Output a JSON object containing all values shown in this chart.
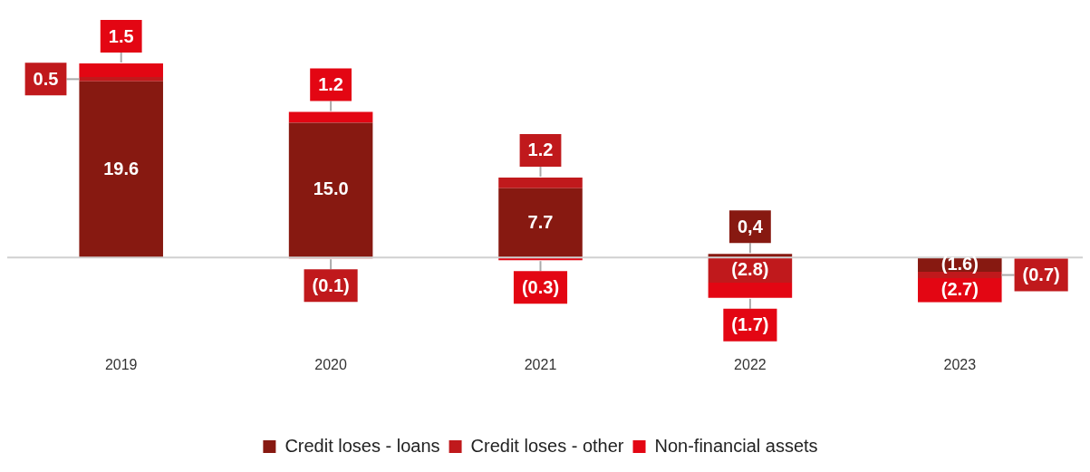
{
  "chart_data": {
    "type": "bar",
    "stacked": true,
    "categories": [
      "2019",
      "2020",
      "2021",
      "2022",
      "2023"
    ],
    "series": [
      {
        "name": "Credit loses - loans",
        "color": "#871911",
        "values": [
          19.6,
          15.0,
          7.7,
          0.4,
          -1.6
        ],
        "value_labels": [
          "19.6",
          "15.0",
          "7.7",
          "0,4",
          "(1.6)"
        ]
      },
      {
        "name": "Credit loses - other",
        "color": "#c0191c",
        "values": [
          0.5,
          -0.1,
          1.2,
          -2.8,
          -0.7
        ],
        "value_labels": [
          "0.5",
          "(0.1)",
          "1.2",
          "(2.8)",
          "(0.7)"
        ]
      },
      {
        "name": "Non-financial assets",
        "color": "#e30613",
        "values": [
          1.5,
          1.2,
          -0.3,
          -1.7,
          -2.7
        ],
        "value_labels": [
          "1.5",
          "1.2",
          "(0.3)",
          "(1.7)",
          "(2.7)"
        ]
      }
    ],
    "legend": "bottom",
    "grid": false
  }
}
